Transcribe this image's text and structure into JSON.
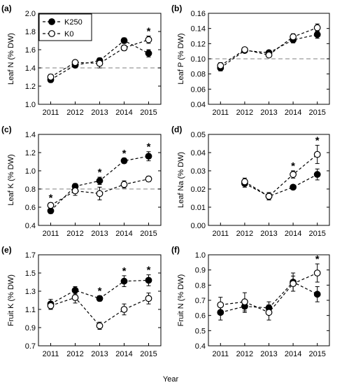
{
  "figure": {
    "shared_xlabel": "Year",
    "legend": {
      "items": [
        {
          "label": "K250",
          "marker": "filled-circle"
        },
        {
          "label": "K0",
          "marker": "open-circle"
        }
      ],
      "placement": "top-left of panel (a)"
    }
  },
  "chart_data": [
    {
      "panel": "(a)",
      "type": "line",
      "ylabel": "Leaf N (% DW)",
      "x": [
        "2011",
        "2012",
        "2013",
        "2014",
        "2015"
      ],
      "ylim": [
        1.0,
        2.0
      ],
      "yticks": [
        "1.0",
        "1.2",
        "1.4",
        "1.6",
        "1.8",
        "2.0"
      ],
      "reference_line": 1.4,
      "series": [
        {
          "name": "K250",
          "values": [
            1.27,
            1.43,
            1.48,
            1.7,
            1.56
          ],
          "errors": [
            0.03,
            0.02,
            0.03,
            0.03,
            0.04
          ]
        },
        {
          "name": "K0",
          "values": [
            1.3,
            1.46,
            1.45,
            1.62,
            1.71
          ],
          "errors": [
            0.03,
            0.02,
            0.05,
            0.03,
            0.04
          ]
        }
      ],
      "significant": [
        false,
        false,
        false,
        false,
        true
      ]
    },
    {
      "panel": "(b)",
      "type": "line",
      "ylabel": "Leaf P (% DW)",
      "x": [
        "2011",
        "2012",
        "2013",
        "2014",
        "2015"
      ],
      "ylim": [
        0.04,
        0.16
      ],
      "yticks": [
        "0.04",
        "0.06",
        "0.08",
        "0.10",
        "0.12",
        "0.14",
        "0.16"
      ],
      "reference_line": 0.1,
      "series": [
        {
          "name": "K250",
          "values": [
            0.088,
            0.111,
            0.108,
            0.125,
            0.132
          ],
          "errors": [
            0.004,
            0.003,
            0.003,
            0.004,
            0.005
          ]
        },
        {
          "name": "K0",
          "values": [
            0.091,
            0.112,
            0.105,
            0.129,
            0.141
          ],
          "errors": [
            0.004,
            0.003,
            0.003,
            0.004,
            0.005
          ]
        }
      ],
      "significant": [
        false,
        false,
        false,
        false,
        false
      ]
    },
    {
      "panel": "(c)",
      "type": "line",
      "ylabel": "Leaf K (% DW)",
      "x": [
        "2011",
        "2012",
        "2013",
        "2014",
        "2015"
      ],
      "ylim": [
        0.4,
        1.4
      ],
      "yticks": [
        "0.4",
        "0.6",
        "0.8",
        "1.0",
        "1.2",
        "1.4"
      ],
      "reference_line": 0.8,
      "series": [
        {
          "name": "K250",
          "values": [
            0.56,
            0.83,
            0.89,
            1.11,
            1.16
          ],
          "errors": [
            0.03,
            0.03,
            0.04,
            0.03,
            0.05
          ]
        },
        {
          "name": "K0",
          "values": [
            0.62,
            0.78,
            0.75,
            0.85,
            0.91
          ],
          "errors": [
            0.03,
            0.05,
            0.07,
            0.04,
            0.03
          ]
        }
      ],
      "significant": [
        true,
        false,
        true,
        true,
        true
      ]
    },
    {
      "panel": "(d)",
      "type": "line",
      "ylabel": "Leaf Na (% DW)",
      "x": [
        "2011",
        "2012",
        "2013",
        "2014",
        "2015"
      ],
      "ylim": [
        0.0,
        0.05
      ],
      "yticks": [
        "0.00",
        "0.01",
        "0.02",
        "0.03",
        "0.04",
        "0.05"
      ],
      "reference_line": null,
      "series": [
        {
          "name": "K250",
          "values": [
            null,
            0.023,
            0.016,
            0.021,
            0.028
          ],
          "errors": [
            null,
            0.002,
            0.002,
            0.001,
            0.003
          ]
        },
        {
          "name": "K0",
          "values": [
            null,
            0.024,
            0.016,
            0.028,
            0.039
          ],
          "errors": [
            null,
            0.002,
            0.002,
            0.002,
            0.005
          ]
        }
      ],
      "significant": [
        false,
        false,
        false,
        true,
        true
      ]
    },
    {
      "panel": "(e)",
      "type": "line",
      "ylabel": "Fruit K (% DW)",
      "x": [
        "2011",
        "2012",
        "2013",
        "2014",
        "2015"
      ],
      "ylim": [
        0.7,
        1.7
      ],
      "yticks": [
        "0.7",
        "0.9",
        "1.1",
        "1.3",
        "1.5",
        "1.7"
      ],
      "reference_line": null,
      "series": [
        {
          "name": "K250",
          "values": [
            1.16,
            1.31,
            1.22,
            1.41,
            1.42
          ],
          "errors": [
            0.05,
            0.04,
            0.03,
            0.06,
            0.06
          ]
        },
        {
          "name": "K0",
          "values": [
            1.14,
            1.23,
            0.92,
            1.1,
            1.22
          ],
          "errors": [
            0.04,
            0.06,
            0.04,
            0.06,
            0.06
          ]
        }
      ],
      "significant": [
        false,
        false,
        true,
        true,
        true
      ]
    },
    {
      "panel": "(f)",
      "type": "line",
      "ylabel": "Fruit N (% DW)",
      "x": [
        "2011",
        "2012",
        "2013",
        "2014",
        "2015"
      ],
      "ylim": [
        0.4,
        1.0
      ],
      "yticks": [
        "0.4",
        "0.5",
        "0.6",
        "0.7",
        "0.8",
        "0.9",
        "1.0"
      ],
      "reference_line": null,
      "series": [
        {
          "name": "K250",
          "values": [
            0.62,
            0.66,
            0.65,
            0.82,
            0.74
          ],
          "errors": [
            0.05,
            0.04,
            0.04,
            0.06,
            0.05
          ]
        },
        {
          "name": "K0",
          "values": [
            0.67,
            0.69,
            0.62,
            0.81,
            0.88
          ],
          "errors": [
            0.05,
            0.06,
            0.05,
            0.05,
            0.06
          ]
        }
      ],
      "significant": [
        false,
        false,
        false,
        false,
        true
      ]
    }
  ]
}
